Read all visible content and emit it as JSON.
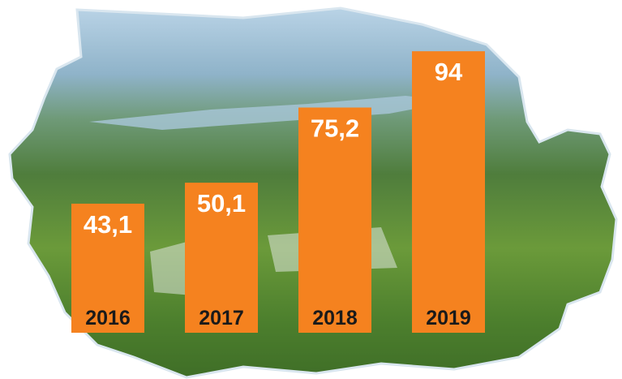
{
  "chart_data": {
    "type": "bar",
    "categories": [
      "2016",
      "2017",
      "2018",
      "2019"
    ],
    "values": [
      43.1,
      50.1,
      75.2,
      94
    ],
    "value_labels": [
      "43,1",
      "50,1",
      "75,2",
      "94"
    ],
    "color": "#f5821f"
  }
}
